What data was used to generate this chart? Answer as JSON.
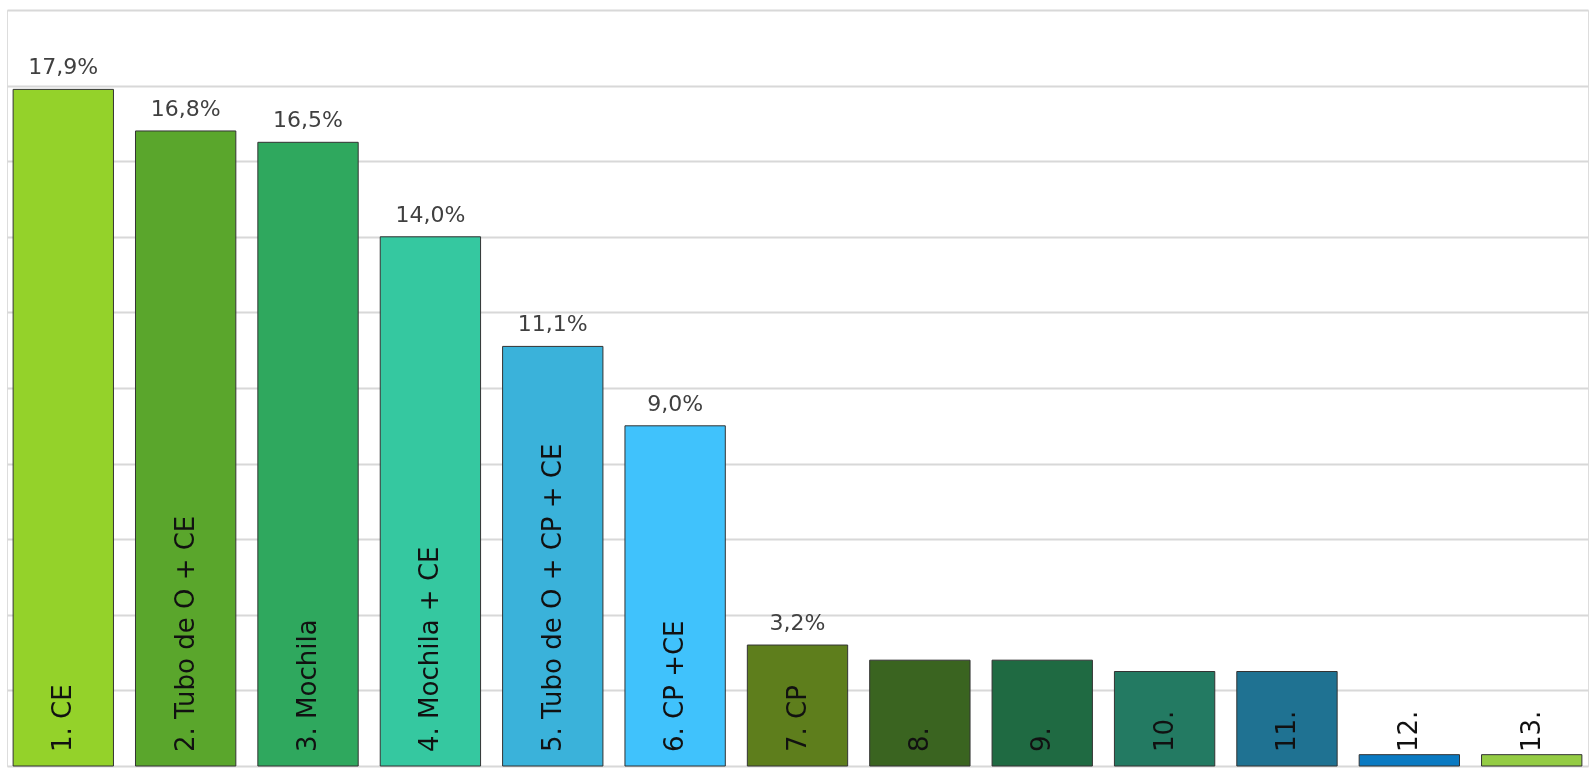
{
  "chart_data": {
    "type": "bar",
    "categories": [
      "1. CE",
      "2. Tubo de O + CE",
      "3. Mochila",
      "4. Mochila + CE",
      "5. Tubo de O + CP + CE",
      "6. CP +CE",
      "7. CP",
      "8.",
      "9.",
      "10.",
      "11.",
      "12.",
      "13."
    ],
    "values": [
      17.9,
      16.8,
      16.5,
      14.0,
      11.1,
      9.0,
      3.2,
      2.8,
      2.8,
      2.5,
      2.5,
      0.3,
      0.3
    ],
    "colors": [
      "#94d22a",
      "#5aa62c",
      "#2fa85e",
      "#35c8a0",
      "#3ab2da",
      "#40c2fc",
      "#5e7e1c",
      "#3a6420",
      "#1f6a42",
      "#237a62",
      "#1f7292",
      "#0a7ac2",
      "#94cc44"
    ],
    "value_labels": [
      "17,9%",
      "16,8%",
      "16,5%",
      "14,0%",
      "11,1%",
      "9,0%",
      "3,2%",
      null,
      null,
      null,
      null,
      null,
      null
    ],
    "ylim": [
      0,
      20
    ],
    "yticks": [
      {
        "value": 0,
        "label": null
      },
      {
        "value": 2,
        "label": null
      },
      {
        "value": 4,
        "label": null
      },
      {
        "value": 6,
        "label": null
      },
      {
        "value": 8,
        "label": null
      },
      {
        "value": 10,
        "label": null
      },
      {
        "value": 12,
        "label": null
      },
      {
        "value": 14,
        "label": null
      },
      {
        "value": 16,
        "label": null
      },
      {
        "value": 18,
        "label": null
      },
      {
        "value": 20,
        "label": null
      }
    ],
    "grid": true
  }
}
